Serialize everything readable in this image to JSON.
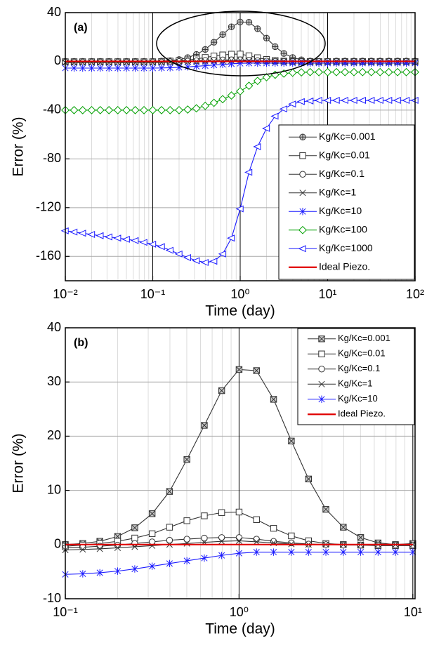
{
  "chart_data": [
    {
      "type": "line",
      "label": "(a)",
      "x_label": "Time (day)",
      "y_label": "Error (%)",
      "log_x": true,
      "grid": true,
      "legend": "lower right",
      "xlim": [
        0.01,
        100
      ],
      "ylim": [
        -180,
        40
      ],
      "xticks": [
        {
          "value": 0.01,
          "label": "10⁻²"
        },
        {
          "value": 0.1,
          "label": "10⁻¹"
        },
        {
          "value": 1,
          "label": "10⁰"
        },
        {
          "value": 10,
          "label": "10¹"
        },
        {
          "value": 100,
          "label": "10²"
        }
      ],
      "yticks": [
        -160,
        -120,
        -80,
        -40,
        0,
        40
      ],
      "x": [
        0.01,
        0.0126,
        0.0158,
        0.02,
        0.0251,
        0.0316,
        0.0398,
        0.0501,
        0.0631,
        0.0794,
        0.1,
        0.126,
        0.158,
        0.2,
        0.251,
        0.316,
        0.398,
        0.501,
        0.631,
        0.794,
        1,
        1.26,
        1.58,
        2,
        2.51,
        3.16,
        3.98,
        5.01,
        6.31,
        7.94,
        10,
        12.6,
        15.8,
        20,
        25.1,
        31.6,
        39.8,
        50.1,
        63.1,
        79.4,
        100
      ],
      "series": [
        {
          "name": "Kg/Kc=0.001",
          "color": "#333333",
          "marker": "circle-plus",
          "values": [
            0,
            0,
            0,
            0,
            0,
            0,
            0,
            0,
            0,
            0,
            0,
            0.2,
            0.6,
            1.5,
            3.1,
            5.7,
            9.8,
            15.7,
            22,
            28.4,
            32.3,
            32.1,
            26.8,
            19.1,
            12.1,
            6.5,
            3.2,
            1.3,
            0.3,
            0,
            0.2,
            0.3,
            0.3,
            0.3,
            0.3,
            0.3,
            0.3,
            0.3,
            0.3,
            0.3,
            0.3
          ]
        },
        {
          "name": "Kg/Kc=0.01",
          "color": "#333333",
          "marker": "square",
          "values": [
            -0.3,
            -0.3,
            -0.3,
            -0.3,
            -0.3,
            -0.3,
            -0.3,
            -0.3,
            -0.3,
            -0.3,
            -0.3,
            -0.1,
            0.2,
            0.6,
            1.2,
            2.0,
            3.2,
            4.4,
            5.3,
            5.9,
            6.0,
            4.6,
            3.0,
            1.6,
            0.7,
            0.2,
            0,
            -0.1,
            -0.2,
            -0.2,
            -0.2,
            -0.2,
            -0.2,
            -0.2,
            -0.2,
            -0.2,
            -0.2,
            -0.2,
            -0.2,
            -0.2,
            -0.2
          ]
        },
        {
          "name": "Kg/Kc=0.1",
          "color": "#333333",
          "marker": "circle",
          "values": [
            -0.6,
            -0.6,
            -0.6,
            -0.6,
            -0.6,
            -0.6,
            -0.6,
            -0.6,
            -0.6,
            -0.6,
            -0.6,
            -0.5,
            -0.3,
            -0.1,
            0.2,
            0.5,
            0.8,
            1.0,
            1.2,
            1.3,
            1.3,
            1.0,
            0.6,
            0.3,
            0.1,
            0,
            -0.1,
            -0.1,
            -0.1,
            -0.1,
            -0.1,
            -0.1,
            -0.1,
            -0.1,
            -0.1,
            -0.1,
            -0.1,
            -0.1,
            -0.1,
            -0.1,
            -0.1
          ]
        },
        {
          "name": "Kg/Kc=1",
          "color": "#333333",
          "marker": "x",
          "values": [
            -1.0,
            -1.0,
            -1.0,
            -1.0,
            -1.0,
            -1.0,
            -1.0,
            -1.0,
            -1.0,
            -1.0,
            -1.0,
            -0.9,
            -0.8,
            -0.6,
            -0.4,
            -0.2,
            0,
            0.2,
            0.4,
            0.6,
            0.7,
            0.5,
            0.3,
            0.1,
            0,
            0,
            0,
            0,
            0,
            0,
            0,
            0,
            0,
            0,
            0,
            0,
            0,
            0,
            0,
            0,
            0
          ]
        },
        {
          "name": "Kg/Kc=10",
          "color": "#1a1aff",
          "marker": "asterisk",
          "values": [
            -5.5,
            -5.5,
            -5.5,
            -5.5,
            -5.5,
            -5.5,
            -5.5,
            -5.5,
            -5.5,
            -5.5,
            -5.5,
            -5.4,
            -5.2,
            -4.9,
            -4.5,
            -4.0,
            -3.5,
            -3.0,
            -2.5,
            -2.0,
            -1.6,
            -1.4,
            -1.4,
            -1.4,
            -1.4,
            -1.4,
            -1.4,
            -1.4,
            -1.4,
            -1.4,
            -1.4,
            -1.4,
            -1.4,
            -1.4,
            -1.4,
            -1.4,
            -1.4,
            -1.4,
            -1.4,
            -1.4,
            -1.4
          ]
        },
        {
          "name": "Kg/Kc=100",
          "color": "#00a000",
          "marker": "diamond",
          "values": [
            -40,
            -40,
            -40,
            -40,
            -40,
            -40,
            -40,
            -40,
            -40,
            -40,
            -40,
            -40,
            -40,
            -40,
            -39.5,
            -38.5,
            -36.5,
            -34,
            -31,
            -28,
            -24.5,
            -20,
            -16,
            -13,
            -11,
            -10,
            -9.3,
            -9,
            -8.8,
            -8.8,
            -8.8,
            -8.8,
            -8.8,
            -8.8,
            -8.8,
            -8.8,
            -8.8,
            -8.8,
            -8.8,
            -8.8,
            -8.8
          ]
        },
        {
          "name": "Kg/Kc=1000",
          "color": "#1a1aff",
          "marker": "triangle-left",
          "values": [
            -139,
            -140,
            -141,
            -142,
            -143,
            -144,
            -145,
            -146,
            -147,
            -148.5,
            -150,
            -152,
            -155,
            -158,
            -161,
            -163.5,
            -165,
            -164,
            -158,
            -145,
            -121,
            -91,
            -70,
            -55,
            -45,
            -39,
            -35,
            -33,
            -32.5,
            -32,
            -32,
            -32,
            -32,
            -32,
            -32,
            -32,
            -32,
            -32,
            -32,
            -32,
            -32
          ]
        },
        {
          "name": "Ideal Piezo.",
          "color": "#e00000",
          "marker": "none",
          "values": [
            0,
            0,
            0,
            0,
            0,
            0,
            0,
            0,
            0,
            0,
            0,
            0,
            0,
            0,
            0,
            0,
            0,
            0,
            0,
            0,
            0,
            0,
            0,
            0,
            0,
            0,
            0,
            0,
            0,
            0,
            0,
            0,
            0,
            0,
            0,
            0,
            0,
            0,
            0,
            0,
            0
          ]
        }
      ]
    },
    {
      "type": "line",
      "label": "(b)",
      "x_label": "Time (day)",
      "y_label": "Error (%)",
      "log_x": true,
      "grid": true,
      "legend": "upper right",
      "xlim": [
        0.1,
        10.3
      ],
      "ylim": [
        -10,
        40
      ],
      "xticks": [
        {
          "value": 0.1,
          "label": "10⁻¹"
        },
        {
          "value": 1,
          "label": "10⁰"
        },
        {
          "value": 10,
          "label": "10¹"
        }
      ],
      "yticks": [
        -10,
        0,
        10,
        20,
        30,
        40
      ],
      "x": [
        0.1,
        0.126,
        0.158,
        0.2,
        0.251,
        0.316,
        0.398,
        0.501,
        0.631,
        0.794,
        1,
        1.26,
        1.58,
        2,
        2.51,
        3.16,
        3.98,
        5.01,
        6.31,
        7.94,
        10
      ],
      "series": [
        {
          "name": "Kg/Kc=0.001",
          "color": "#333333",
          "marker": "square-x",
          "values": [
            0,
            0.2,
            0.6,
            1.5,
            3.1,
            5.7,
            9.8,
            15.7,
            22,
            28.4,
            32.3,
            32.1,
            26.8,
            19.1,
            12.1,
            6.5,
            3.2,
            1.3,
            0.3,
            0,
            0.2
          ]
        },
        {
          "name": "Kg/Kc=0.01",
          "color": "#333333",
          "marker": "square",
          "values": [
            -0.3,
            -0.1,
            0.2,
            0.6,
            1.2,
            2.0,
            3.2,
            4.4,
            5.3,
            5.9,
            6.0,
            4.6,
            3.0,
            1.6,
            0.7,
            0.2,
            0,
            -0.1,
            -0.2,
            -0.2,
            -0.2
          ]
        },
        {
          "name": "Kg/Kc=0.1",
          "color": "#333333",
          "marker": "circle",
          "values": [
            -0.6,
            -0.5,
            -0.3,
            -0.1,
            0.2,
            0.5,
            0.8,
            1.0,
            1.2,
            1.3,
            1.3,
            1.0,
            0.6,
            0.3,
            0.1,
            0,
            -0.1,
            -0.1,
            -0.1,
            -0.1,
            -0.1
          ]
        },
        {
          "name": "Kg/Kc=1",
          "color": "#333333",
          "marker": "x",
          "values": [
            -1.0,
            -0.9,
            -0.8,
            -0.6,
            -0.4,
            -0.2,
            0,
            0.2,
            0.4,
            0.6,
            0.7,
            0.5,
            0.3,
            0.1,
            0,
            0,
            0,
            0,
            0,
            0,
            0
          ]
        },
        {
          "name": "Kg/Kc=10",
          "color": "#1a1aff",
          "marker": "asterisk",
          "values": [
            -5.5,
            -5.4,
            -5.2,
            -4.9,
            -4.5,
            -4.0,
            -3.5,
            -3.0,
            -2.5,
            -2.0,
            -1.6,
            -1.4,
            -1.4,
            -1.4,
            -1.4,
            -1.4,
            -1.4,
            -1.4,
            -1.4,
            -1.4,
            -1.4
          ]
        },
        {
          "name": "Ideal Piezo.",
          "color": "#e00000",
          "marker": "none",
          "values": [
            0,
            0,
            0,
            0,
            0,
            0,
            0,
            0,
            0,
            0,
            0,
            0,
            0,
            0,
            0,
            0,
            0,
            0,
            0,
            0,
            0
          ]
        }
      ]
    }
  ]
}
